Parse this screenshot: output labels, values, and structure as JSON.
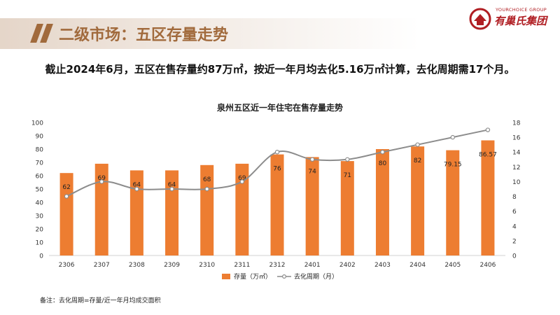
{
  "header": {
    "section_title": "二级市场：五区存量走势",
    "logo_en": "YOURCHOICE GROUP",
    "logo_cn": "有巢氏集团"
  },
  "summary": "截止2024年6月，五区在售存量约87万㎡，按近一年月均去化5.16万㎡计算，去化周期需17个月。",
  "footnote": "备注：去化周期=存量/近一年月均成交面积",
  "colors": {
    "bar": "#ed7d31",
    "line": "#8c8c8c",
    "accent": "#a16a3c",
    "logo": "#b01e23"
  },
  "chart_data": {
    "type": "bar",
    "title": "泉州五区近一年住宅在售存量走势",
    "categories": [
      "2306",
      "2307",
      "2308",
      "2309",
      "2310",
      "2311",
      "2312",
      "2401",
      "2402",
      "2403",
      "2404",
      "2405",
      "2406"
    ],
    "series": [
      {
        "name": "存量（万㎡）",
        "type": "bar",
        "axis": "left",
        "values": [
          62,
          69,
          64,
          64,
          68,
          69,
          76,
          74,
          71,
          80,
          82,
          79.15,
          86.57
        ],
        "labels": [
          "62",
          "69",
          "64",
          "64",
          "68",
          "69",
          "76",
          "74",
          "71",
          "80",
          "82",
          "79.15",
          "86.57"
        ]
      },
      {
        "name": "去化周期（月）",
        "type": "line",
        "axis": "right",
        "values": [
          8,
          10,
          9,
          9,
          9,
          10,
          14,
          13,
          13,
          14,
          15,
          16,
          17
        ]
      }
    ],
    "ylim_left": [
      0,
      100
    ],
    "yticks_left": [
      "0",
      "10",
      "20",
      "30",
      "40",
      "50",
      "60",
      "70",
      "80",
      "90",
      "100"
    ],
    "ylim_right": [
      0,
      18
    ],
    "yticks_right": [
      "0",
      "2",
      "4",
      "6",
      "8",
      "10",
      "12",
      "14",
      "16",
      "18"
    ],
    "legend_position": "bottom"
  }
}
